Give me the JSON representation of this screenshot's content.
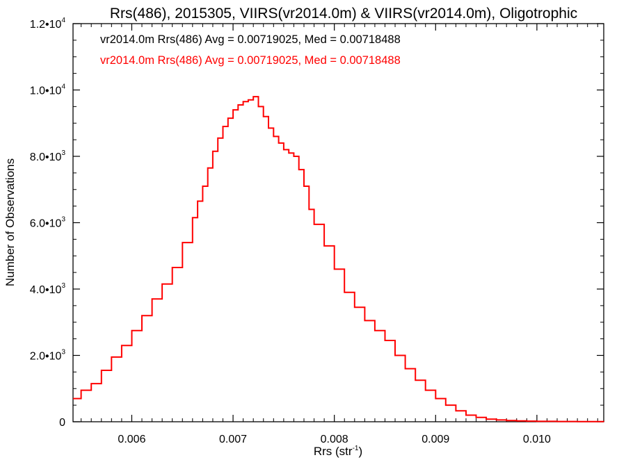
{
  "chart_data": {
    "type": "line",
    "step": true,
    "title": "Rrs(486), 2015305, VIIRS(vr2014.0m) & VIIRS(vr2014.0m), Oligotrophic",
    "xlabel": "Rrs (str",
    "xlabel_sup": "-1",
    "xlabel_tail": ")",
    "ylabel": "Number of Observations",
    "xlim": [
      0.00542,
      0.01066
    ],
    "ylim": [
      0,
      12000
    ],
    "grid": false,
    "x_ticks": [
      {
        "value": 0.006,
        "label": "0.006"
      },
      {
        "value": 0.007,
        "label": "0.007"
      },
      {
        "value": 0.008,
        "label": "0.008"
      },
      {
        "value": 0.009,
        "label": "0.009"
      },
      {
        "value": 0.01,
        "label": "0.010"
      }
    ],
    "y_ticks": [
      {
        "value": 0,
        "label": "0",
        "sup": ""
      },
      {
        "value": 2000,
        "label": "2.0•10",
        "sup": "3"
      },
      {
        "value": 4000,
        "label": "4.0•10",
        "sup": "3"
      },
      {
        "value": 6000,
        "label": "6.0•10",
        "sup": "3"
      },
      {
        "value": 8000,
        "label": "8.0•10",
        "sup": "3"
      },
      {
        "value": 10000,
        "label": "1.0•10",
        "sup": "4"
      },
      {
        "value": 12000,
        "label": "1.2•10",
        "sup": "4"
      }
    ],
    "legend": {
      "placement": "top-left",
      "entries": [
        {
          "text": "vr2014.0m Rrs(486) Avg = 0.00719025, Med = 0.00718488",
          "color": "#000000"
        },
        {
          "text": "vr2014.0m Rrs(486) Avg = 0.00719025, Med = 0.00718488",
          "color": "#ff0000"
        }
      ]
    },
    "series": [
      {
        "color": "#ff0000",
        "x": [
          0.00542,
          0.0055,
          0.0056,
          0.0057,
          0.0058,
          0.0059,
          0.006,
          0.0061,
          0.0062,
          0.0063,
          0.0064,
          0.0065,
          0.0066,
          0.00665,
          0.0067,
          0.00675,
          0.0068,
          0.00685,
          0.0069,
          0.00695,
          0.007,
          0.00705,
          0.0071,
          0.00715,
          0.0072,
          0.00725,
          0.0073,
          0.00735,
          0.0074,
          0.00745,
          0.0075,
          0.00755,
          0.0076,
          0.00765,
          0.0077,
          0.00775,
          0.0078,
          0.0079,
          0.008,
          0.0081,
          0.0082,
          0.0083,
          0.0084,
          0.0085,
          0.0086,
          0.0087,
          0.0088,
          0.0089,
          0.009,
          0.0091,
          0.0092,
          0.0093,
          0.0094,
          0.0095,
          0.0096,
          0.0097,
          0.0098,
          0.0099,
          0.01,
          0.0102,
          0.0104,
          0.01066
        ],
        "values": [
          700,
          950,
          1150,
          1550,
          1950,
          2300,
          2750,
          3200,
          3700,
          4150,
          4650,
          5400,
          6150,
          6650,
          7100,
          7650,
          8150,
          8550,
          8900,
          9150,
          9400,
          9550,
          9650,
          9700,
          9800,
          9500,
          9200,
          8850,
          8600,
          8400,
          8200,
          8100,
          8000,
          7600,
          7100,
          6400,
          5950,
          5300,
          4600,
          3900,
          3450,
          3050,
          2750,
          2450,
          2000,
          1600,
          1250,
          950,
          700,
          500,
          330,
          200,
          130,
          80,
          55,
          35,
          25,
          18,
          12,
          8,
          5,
          3
        ]
      }
    ]
  }
}
